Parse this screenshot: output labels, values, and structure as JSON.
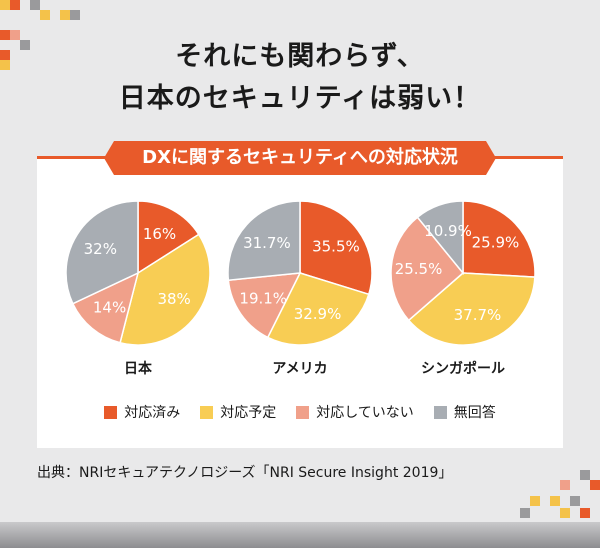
{
  "headline": {
    "line1": "それにも関わらず、",
    "line2": "日本のセキュリティは弱い！"
  },
  "source_text": "出典：NRIセキュアテクノロジーズ「NRI Secure Insight 2019」",
  "colors": {
    "done": "#e85a2a",
    "planned": "#f8cd54",
    "not_done": "#f0a08a",
    "no_answer": "#a8adb3",
    "accent": "#e85a2a"
  },
  "chart_data": {
    "type": "pie",
    "title": "DXに関するセキュリティへの対応状況",
    "categories": [
      "対応済み",
      "対応予定",
      "対応していない",
      "無回答"
    ],
    "series": [
      {
        "name": "日本",
        "values": [
          16,
          38,
          14,
          32
        ],
        "labels": [
          "16%",
          "38%",
          "14%",
          "32%"
        ]
      },
      {
        "name": "アメリカ",
        "values": [
          35.5,
          32.9,
          19.1,
          31.7
        ],
        "labels": [
          "35.5%",
          "32.9%",
          "19.1%",
          "31.7%"
        ]
      },
      {
        "name": "シンガポール",
        "values": [
          25.9,
          37.7,
          25.5,
          10.9
        ],
        "labels": [
          "25.9%",
          "37.7%",
          "25.5%",
          "10.9%"
        ]
      }
    ],
    "legend": "bottom"
  }
}
